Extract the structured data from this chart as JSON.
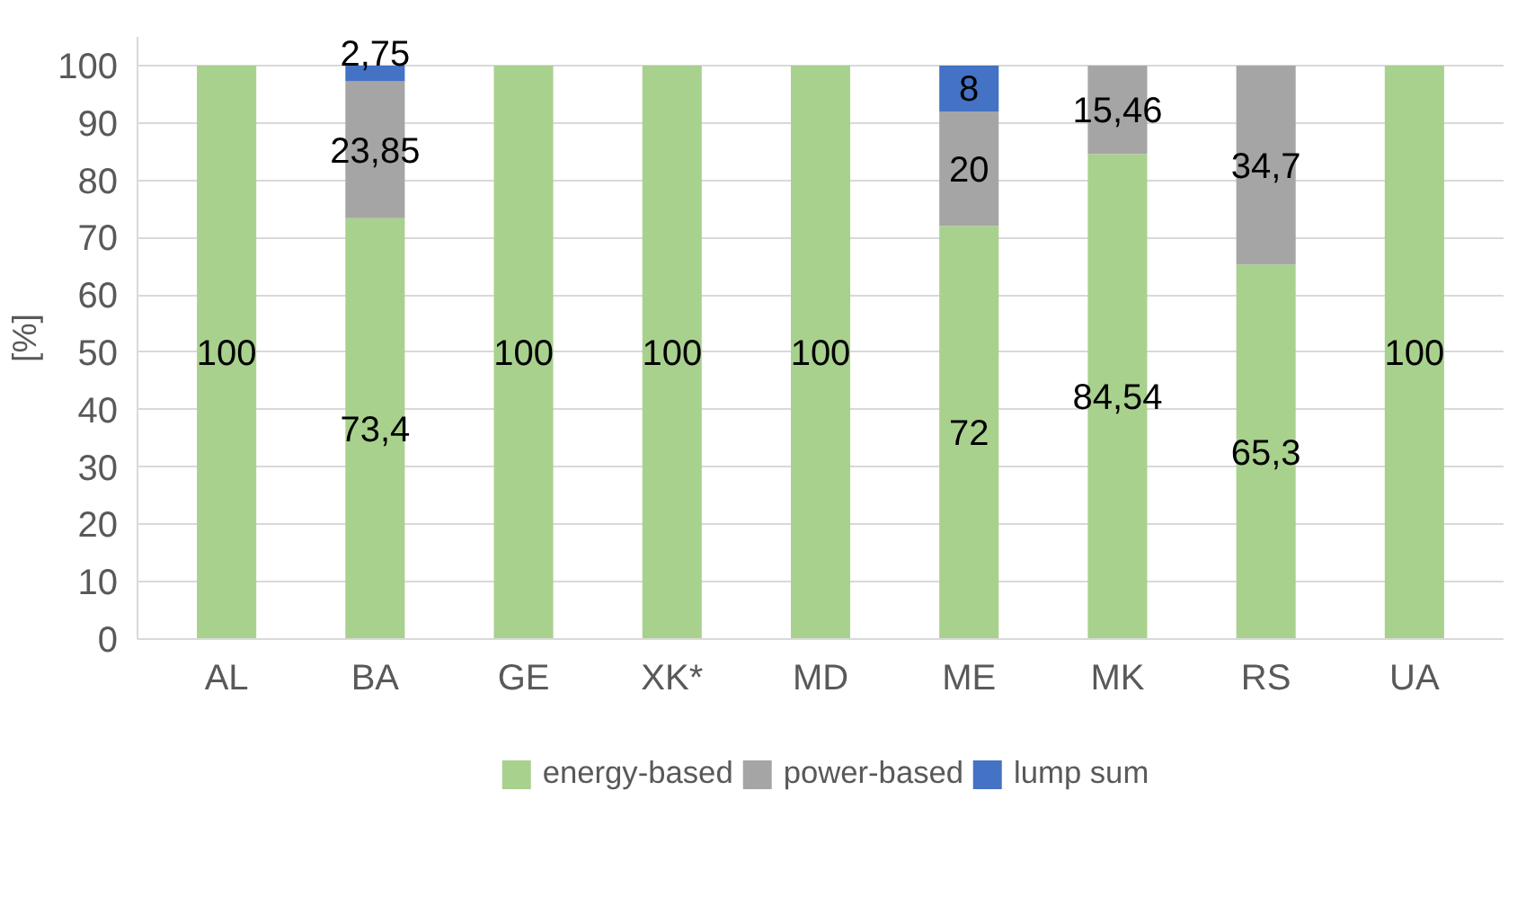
{
  "chart_data": {
    "type": "bar",
    "stacked": true,
    "ylabel": "[%]",
    "categories": [
      "AL",
      "BA",
      "GE",
      "XK*",
      "MD",
      "ME",
      "MK",
      "RS",
      "UA"
    ],
    "series": [
      {
        "name": "energy-based",
        "color": "#a9d18e",
        "values": [
          100,
          73.4,
          100,
          100,
          100,
          72,
          84.54,
          65.3,
          100
        ],
        "value_labels": [
          "100",
          "73,4",
          "100",
          "100",
          "100",
          "72",
          "84,54",
          "65,3",
          "100"
        ]
      },
      {
        "name": "power-based",
        "color": "#a5a5a5",
        "values": [
          0,
          23.85,
          0,
          0,
          0,
          20,
          15.46,
          34.7,
          0
        ],
        "value_labels": [
          null,
          "23,85",
          null,
          null,
          null,
          "20",
          "15,46",
          "34,7",
          null
        ]
      },
      {
        "name": "lump sum",
        "color": "#4472c4",
        "values": [
          0,
          2.75,
          0,
          0,
          0,
          8,
          0,
          0,
          0
        ],
        "value_labels": [
          null,
          "2,75",
          null,
          null,
          null,
          "8",
          null,
          null,
          null
        ]
      }
    ],
    "ylim": [
      0,
      105
    ],
    "yticks": [
      0,
      10,
      20,
      30,
      40,
      50,
      60,
      70,
      80,
      90,
      100
    ],
    "grid": "y",
    "legend": "bottom"
  }
}
